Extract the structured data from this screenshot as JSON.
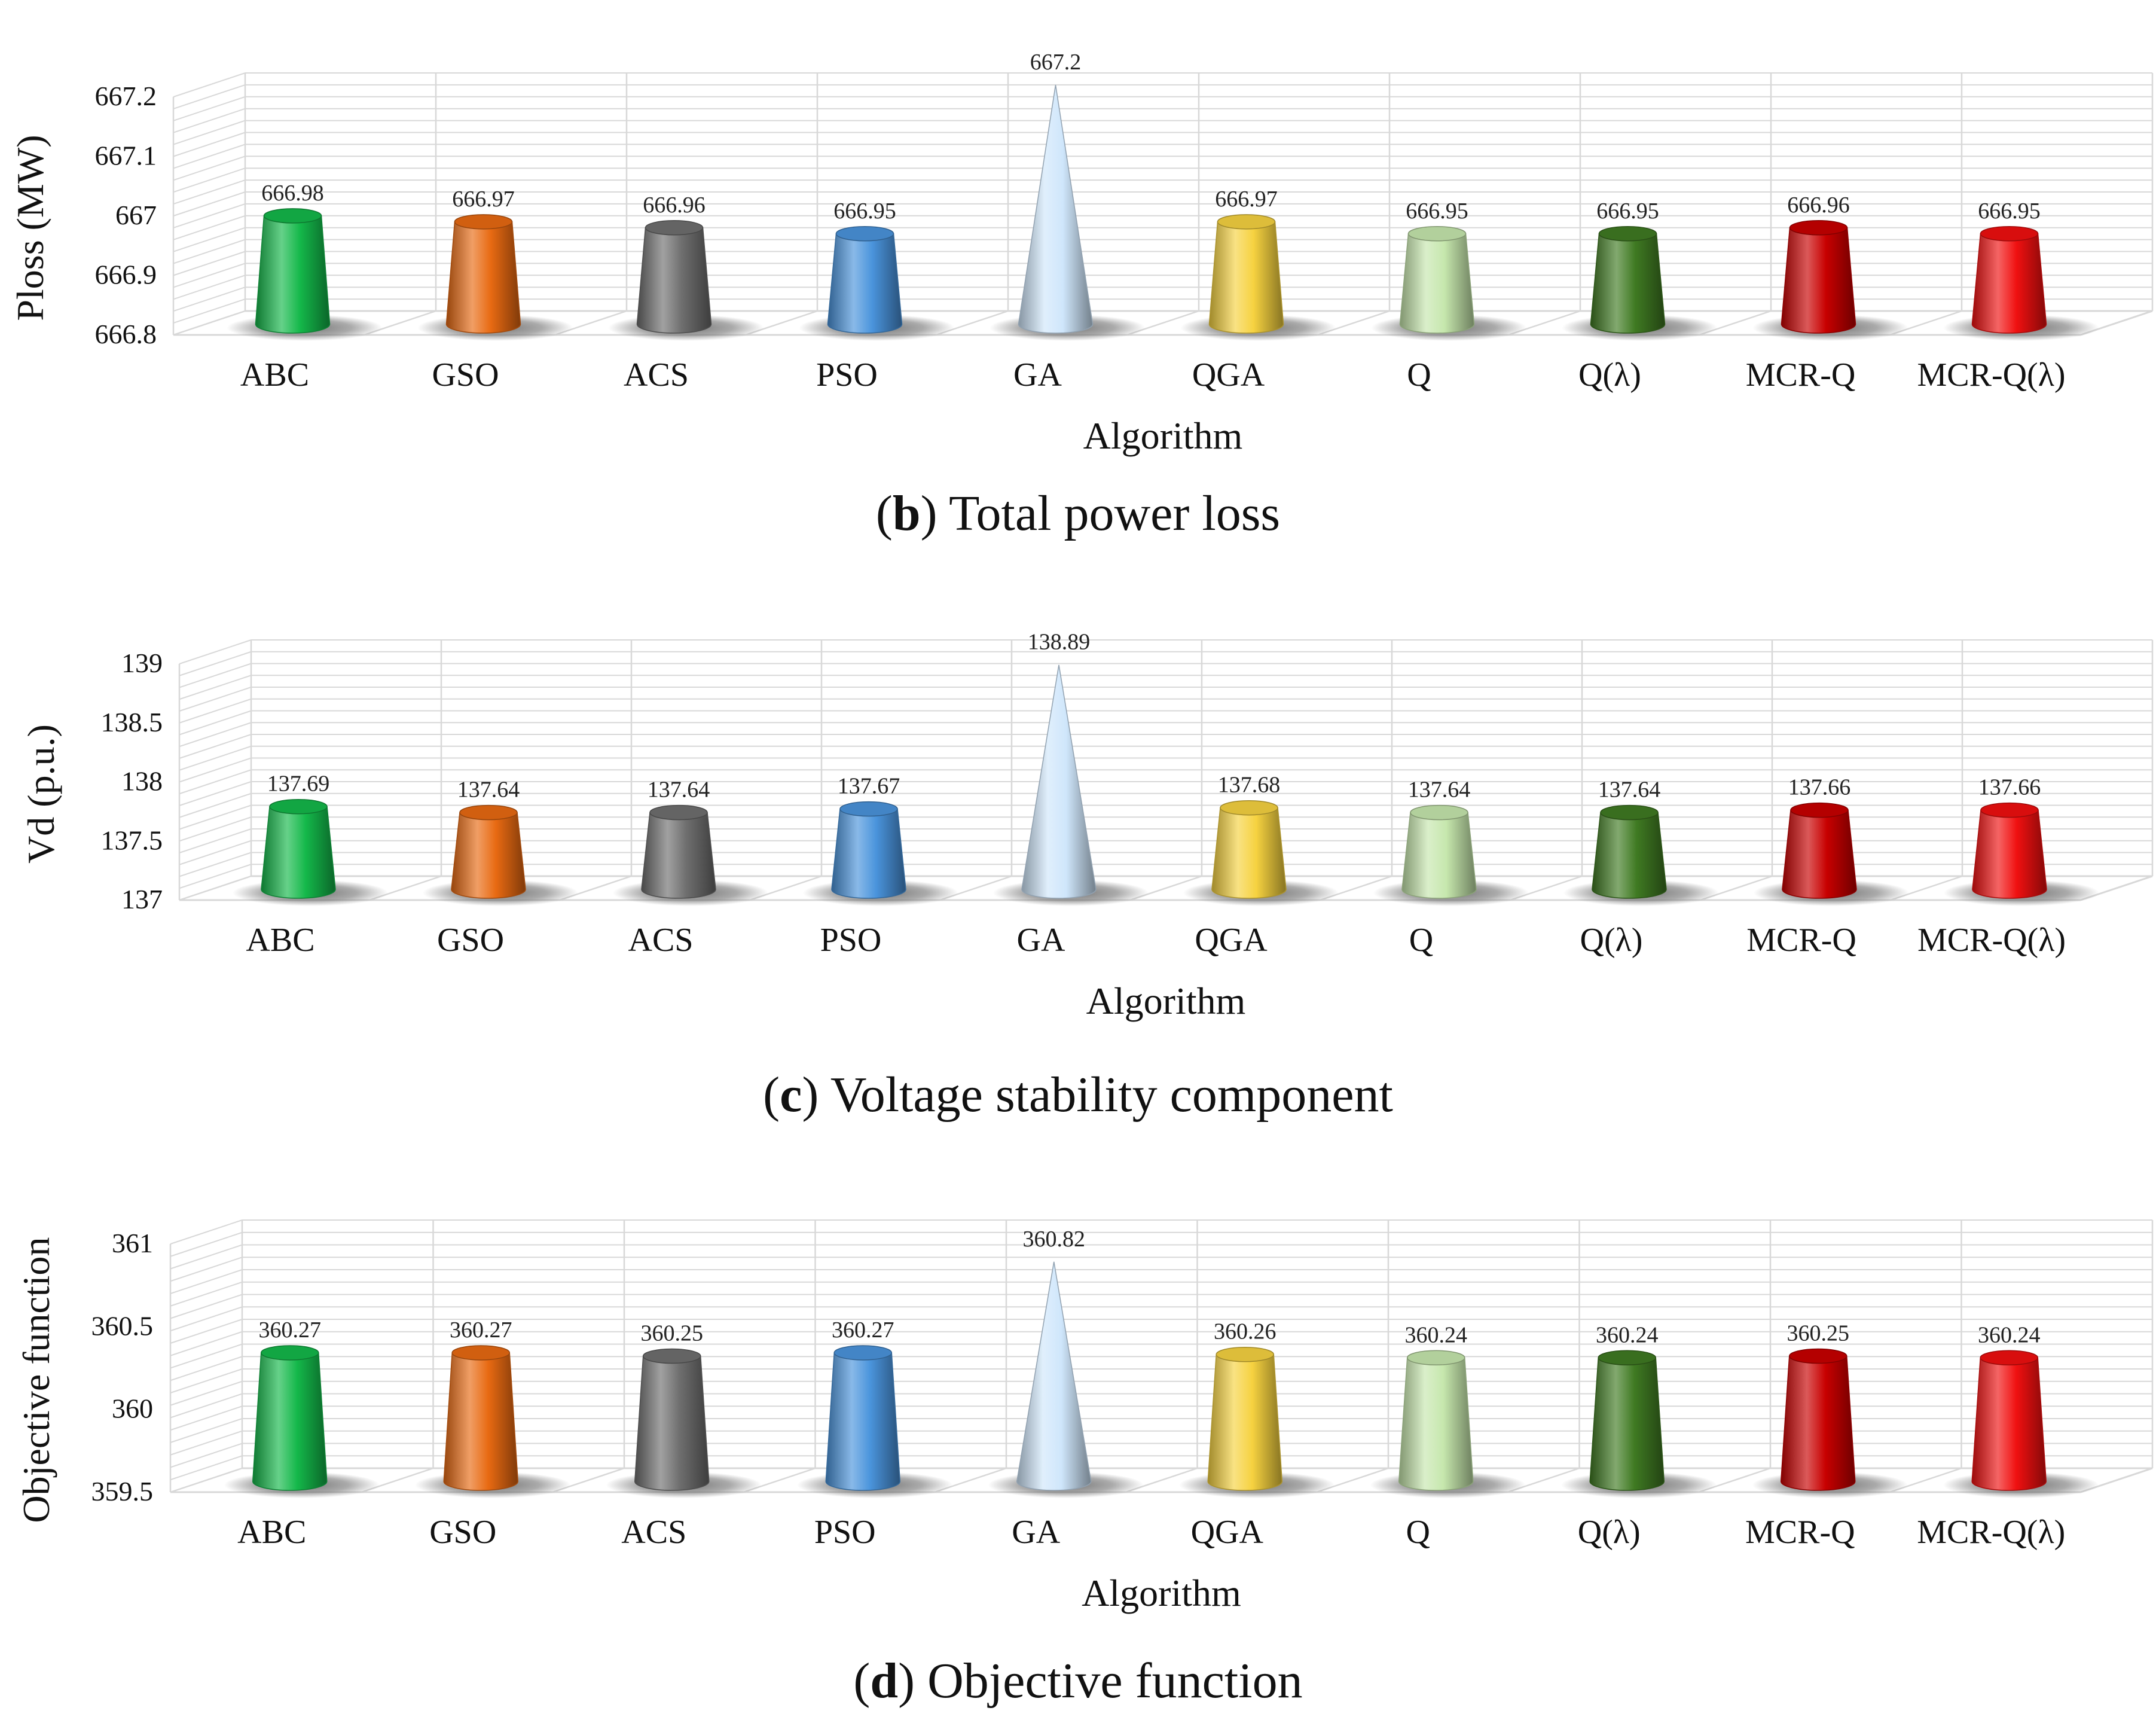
{
  "chart_data": [
    {
      "type": "bar",
      "panel_label": "b",
      "caption": "Total power loss",
      "title": "",
      "xlabel": "Algorithm",
      "ylabel": "Ploss (MW)",
      "categories": [
        "ABC",
        "GSO",
        "ACS",
        "PSO",
        "GA",
        "QGA",
        "Q",
        "Q(λ)",
        "MCR-Q",
        "MCR-Q(λ)"
      ],
      "values": [
        666.98,
        666.97,
        666.96,
        666.95,
        667.2,
        666.97,
        666.95,
        666.95,
        666.96,
        666.95
      ],
      "value_labels": [
        "666.98",
        "666.97",
        "666.96",
        "666.95",
        "667.2",
        "666.97",
        "666.95",
        "666.95",
        "666.96",
        "666.95"
      ],
      "yticks": [
        666.8,
        666.9,
        667,
        667.1,
        667.2
      ],
      "ytick_labels": [
        "666.8",
        "666.9",
        "667",
        "667.1",
        "667.2"
      ],
      "ylim": [
        666.8,
        667.2
      ],
      "grid": true
    },
    {
      "type": "bar",
      "panel_label": "c",
      "caption": "Voltage stability component",
      "title": "",
      "xlabel": "Algorithm",
      "ylabel": "Vd (p.u.)",
      "categories": [
        "ABC",
        "GSO",
        "ACS",
        "PSO",
        "GA",
        "QGA",
        "Q",
        "Q(λ)",
        "MCR-Q",
        "MCR-Q(λ)"
      ],
      "values": [
        137.69,
        137.64,
        137.64,
        137.67,
        138.89,
        137.68,
        137.64,
        137.64,
        137.66,
        137.66
      ],
      "value_labels": [
        "137.69",
        "137.64",
        "137.64",
        "137.67",
        "138.89",
        "137.68",
        "137.64",
        "137.64",
        "137.66",
        "137.66"
      ],
      "yticks": [
        137,
        137.5,
        138,
        138.5,
        139
      ],
      "ytick_labels": [
        "137",
        "137.5",
        "138",
        "138.5",
        "139"
      ],
      "ylim": [
        137,
        139
      ],
      "grid": true
    },
    {
      "type": "bar",
      "panel_label": "d",
      "caption": "Objective function",
      "title": "",
      "xlabel": "Algorithm",
      "ylabel": "Objective function",
      "categories": [
        "ABC",
        "GSO",
        "ACS",
        "PSO",
        "GA",
        "QGA",
        "Q",
        "Q(λ)",
        "MCR-Q",
        "MCR-Q(λ)"
      ],
      "values": [
        360.27,
        360.27,
        360.25,
        360.27,
        360.82,
        360.26,
        360.24,
        360.24,
        360.25,
        360.24
      ],
      "value_labels": [
        "360.27",
        "360.27",
        "360.25",
        "360.27",
        "360.82",
        "360.26",
        "360.24",
        "360.24",
        "360.25",
        "360.24"
      ],
      "yticks": [
        359.5,
        360,
        360.5,
        361
      ],
      "ytick_labels": [
        "359.5",
        "360",
        "360.5",
        "361"
      ],
      "ylim": [
        359.5,
        361
      ],
      "grid": true
    }
  ],
  "colors": {
    "ABC": "#14b84a",
    "GSO": "#e86a12",
    "ACS": "#6f6f6f",
    "PSO": "#4a94dc",
    "GA": "#cfe6fb",
    "QGA": "#f6d240",
    "Q": "#c6e7ad",
    "Q(λ)": "#3f7a22",
    "MCR-Q": "#c80000",
    "MCR-Q(λ)": "#f01010",
    "grid": "#d8d8d8",
    "floor_shadow": "#666666"
  }
}
